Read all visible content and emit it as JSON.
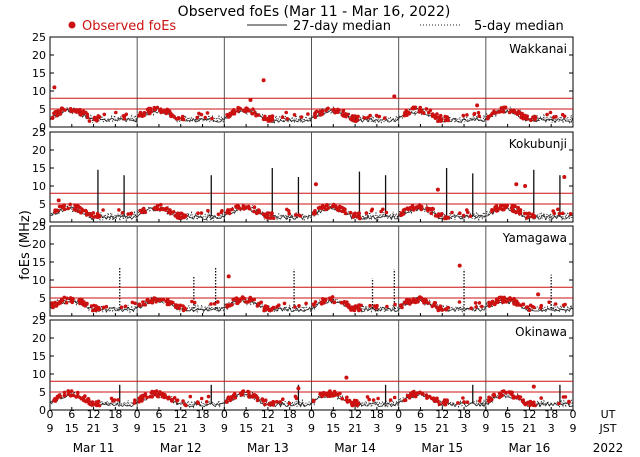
{
  "chart_data": {
    "type": "scatter",
    "title": "Observed foEs (Mar 11 - Mar 16, 2022)",
    "ylabel": "foEs (MHz)",
    "ylim": [
      0,
      25
    ],
    "yticks": [
      0,
      5,
      10,
      15,
      20,
      25
    ],
    "year_label": "2022",
    "ut_label": "UT",
    "jst_label": "JST",
    "ut_hour_labels": [
      "0",
      "6",
      "12",
      "18"
    ],
    "jst_hour_labels": [
      "9",
      "15",
      "21",
      "3"
    ],
    "days": [
      "Mar 11",
      "Mar 12",
      "Mar 13",
      "Mar 14",
      "Mar 15",
      "Mar 16"
    ],
    "legend": {
      "observed": "Observed foEs",
      "median27": "27-day median",
      "median5": "5-day median"
    },
    "colors": {
      "observed": "#cc1111",
      "median27": "#222222",
      "median5": "#222222",
      "threshold": "#cc1111"
    },
    "thresholds": [
      5,
      8
    ],
    "stations": [
      {
        "name": "Wakkanai",
        "daily_peak": 4.5,
        "night_level": 2.2,
        "dot_amp": 1.2,
        "spikes": [],
        "outliers": [
          [
            0.05,
            11
          ],
          [
            2.45,
            13
          ],
          [
            3.95,
            8.5
          ],
          [
            2.3,
            7.5
          ],
          [
            4.9,
            6
          ]
        ]
      },
      {
        "name": "Kokubunji",
        "daily_peak": 3.8,
        "night_level": 1.6,
        "dot_amp": 1.3,
        "spikes": [
          [
            0.55,
            14.5
          ],
          [
            0.85,
            13
          ],
          [
            1.85,
            13
          ],
          [
            2.55,
            15
          ],
          [
            2.85,
            12.5
          ],
          [
            3.55,
            14
          ],
          [
            3.85,
            13
          ],
          [
            4.55,
            15
          ],
          [
            4.85,
            13.5
          ],
          [
            5.55,
            14.5
          ],
          [
            5.85,
            13
          ]
        ],
        "outliers": [
          [
            3.05,
            10.5
          ],
          [
            4.45,
            9
          ],
          [
            5.35,
            10.5
          ],
          [
            5.45,
            10
          ],
          [
            5.9,
            12.5
          ],
          [
            0.1,
            6
          ]
        ]
      },
      {
        "name": "Yamagawa",
        "daily_peak": 4.2,
        "night_level": 2.1,
        "dot_amp": 1.1,
        "spikes": [
          [
            0.8,
            13.5
          ],
          [
            1.65,
            11
          ],
          [
            1.9,
            13.5
          ],
          [
            2.8,
            13
          ],
          [
            3.7,
            10.5
          ],
          [
            3.95,
            13
          ],
          [
            4.75,
            13
          ],
          [
            5.75,
            11.5
          ]
        ],
        "outliers": [
          [
            4.7,
            14
          ],
          [
            2.05,
            11
          ],
          [
            5.6,
            6
          ]
        ]
      },
      {
        "name": "Okinawa",
        "daily_peak": 4.2,
        "night_level": 1.8,
        "dot_amp": 1.0,
        "spikes": [
          [
            0.8,
            7
          ],
          [
            1.85,
            7
          ],
          [
            2.85,
            7
          ],
          [
            3.85,
            7
          ],
          [
            4.85,
            7
          ],
          [
            5.85,
            7
          ]
        ],
        "outliers": [
          [
            3.4,
            9
          ],
          [
            2.85,
            6
          ],
          [
            5.55,
            6.5
          ]
        ]
      }
    ]
  }
}
